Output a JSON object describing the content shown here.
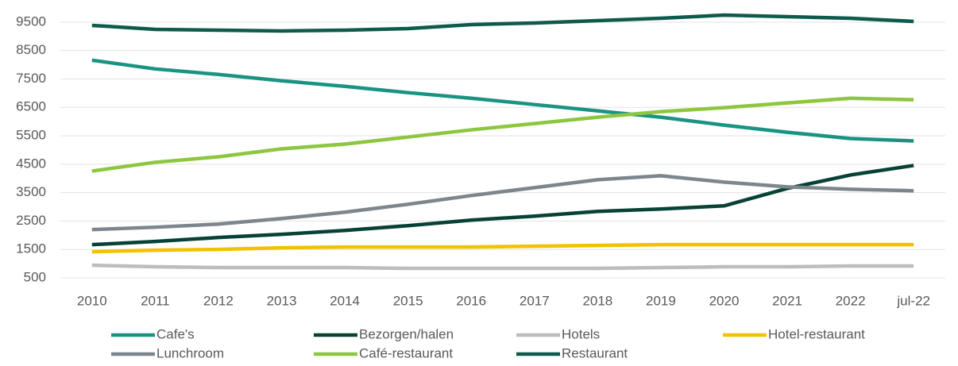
{
  "chart_data": {
    "type": "line",
    "categories": [
      "2010",
      "2011",
      "2012",
      "2013",
      "2014",
      "2015",
      "2016",
      "2017",
      "2018",
      "2019",
      "2020",
      "2021",
      "2022",
      "jul-22"
    ],
    "series": [
      {
        "name": "Cafe's",
        "color": "#1a9383",
        "values": [
          8160,
          7854,
          7659,
          7436,
          7242,
          7019,
          6823,
          6600,
          6378,
          6155,
          5876,
          5625,
          5403,
          5320
        ]
      },
      {
        "name": "Bezorgen/halen",
        "color": "#084236",
        "values": [
          1670,
          1781,
          1921,
          2032,
          2171,
          2338,
          2533,
          2673,
          2840,
          2923,
          3035,
          3648,
          4121,
          4455
        ]
      },
      {
        "name": "Hotels",
        "color": "#bdbdbd",
        "values": [
          946,
          890,
          862,
          862,
          862,
          834,
          834,
          834,
          834,
          862,
          890,
          890,
          918,
          918
        ]
      },
      {
        "name": "Hotel-restaurant",
        "color": "#f2c200",
        "values": [
          1420,
          1475,
          1503,
          1559,
          1586,
          1586,
          1586,
          1614,
          1642,
          1670,
          1670,
          1670,
          1670,
          1670
        ]
      },
      {
        "name": "Lunchroom",
        "color": "#7d868c",
        "values": [
          2200,
          2283,
          2394,
          2589,
          2812,
          3090,
          3397,
          3676,
          3954,
          4093,
          3870,
          3703,
          3620,
          3564
        ]
      },
      {
        "name": "Café-restaurant",
        "color": "#8dc63f",
        "values": [
          4260,
          4567,
          4762,
          5040,
          5208,
          5458,
          5709,
          5932,
          6155,
          6350,
          6490,
          6656,
          6823,
          6768
        ]
      },
      {
        "name": "Restaurant",
        "color": "#0e5b4c",
        "values": [
          9386,
          9246,
          9219,
          9190,
          9219,
          9274,
          9414,
          9470,
          9553,
          9637,
          9748,
          9692,
          9637,
          9525
        ]
      }
    ],
    "ylim": [
      500,
      10000
    ],
    "yticks": [
      500,
      1500,
      2500,
      3500,
      4500,
      5500,
      6500,
      7500,
      8500,
      9500
    ],
    "grid": true
  }
}
